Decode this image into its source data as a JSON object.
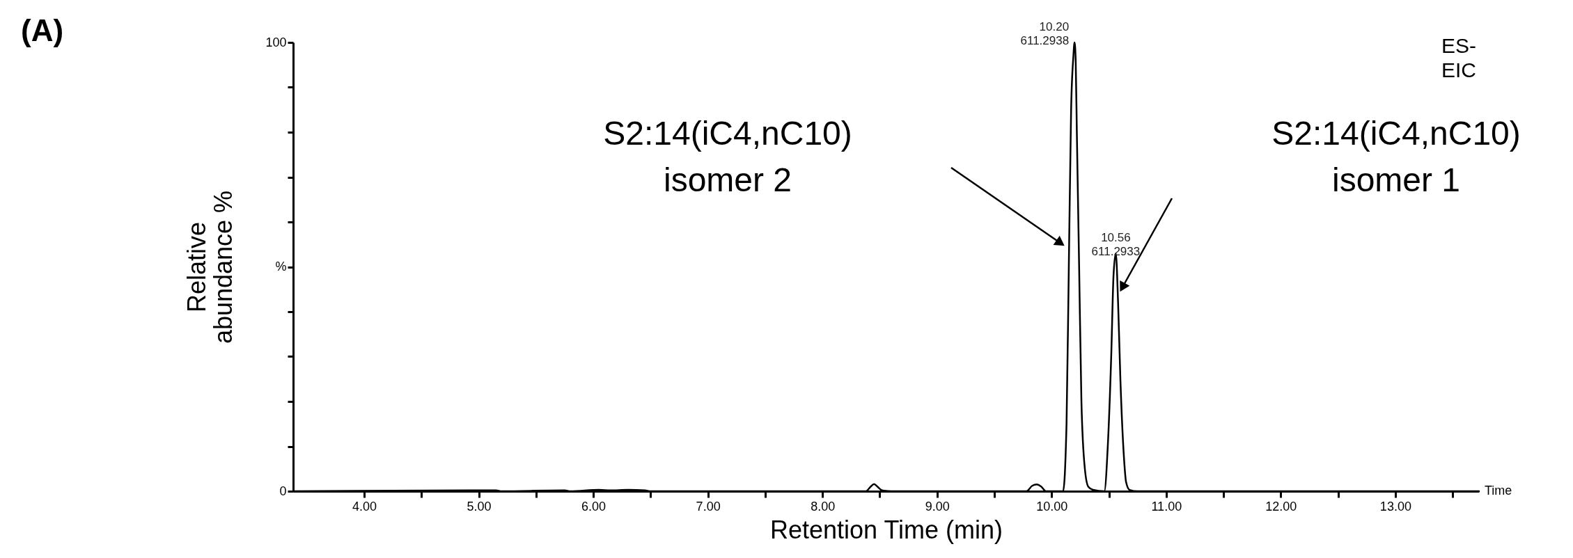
{
  "chart_data": {
    "type": "line",
    "xlabel": "Retention Time (min)",
    "ylabel": "Relative\nabundance %",
    "xlim": [
      3.38,
      13.73
    ],
    "ylim": [
      0,
      100
    ],
    "xticks": [
      {
        "value": 4,
        "label": "4.00"
      },
      {
        "value": 4.5,
        "label": null
      },
      {
        "value": 5,
        "label": "5.00"
      },
      {
        "value": 5.5,
        "label": null
      },
      {
        "value": 6,
        "label": "6.00"
      },
      {
        "value": 6.5,
        "label": null
      },
      {
        "value": 7,
        "label": "7.00"
      },
      {
        "value": 7.5,
        "label": null
      },
      {
        "value": 8,
        "label": "8.00"
      },
      {
        "value": 8.5,
        "label": null
      },
      {
        "value": 9,
        "label": "9.00"
      },
      {
        "value": 9.5,
        "label": null
      },
      {
        "value": 10,
        "label": "10.00"
      },
      {
        "value": 10.5,
        "label": null
      },
      {
        "value": 11,
        "label": "11.00"
      },
      {
        "value": 11.5,
        "label": null
      },
      {
        "value": 12,
        "label": "12.00"
      },
      {
        "value": 12.5,
        "label": null
      },
      {
        "value": 13,
        "label": "13.00"
      },
      {
        "value": 13.5,
        "label": null
      }
    ],
    "yticks": [
      0,
      {
        "value": 10,
        "label": null
      },
      {
        "value": 20,
        "label": null
      },
      {
        "value": 30,
        "label": null
      },
      {
        "value": 40,
        "label": null
      },
      {
        "value": 50,
        "label": "%"
      },
      {
        "value": 60,
        "label": null
      },
      {
        "value": 70,
        "label": null
      },
      {
        "value": 80,
        "label": null
      },
      {
        "value": 90,
        "label": null
      },
      100
    ],
    "grid": false,
    "marker": "none",
    "line_style": "solid",
    "x": [
      3.38,
      5.15,
      5.2,
      5.75,
      5.8,
      6.05,
      6.15,
      6.3,
      6.45,
      6.5,
      8.38,
      8.42,
      8.45,
      8.48,
      8.52,
      8.6,
      9.78,
      9.83,
      9.87,
      9.91,
      9.95,
      10.1,
      10.13,
      10.15,
      10.17,
      10.19,
      10.2,
      10.21,
      10.22,
      10.24,
      10.26,
      10.29,
      10.32,
      10.36,
      10.46,
      10.49,
      10.52,
      10.54,
      10.56,
      10.58,
      10.6,
      10.63,
      10.65,
      10.68,
      10.75,
      13.73
    ],
    "series": [
      {
        "color": "#000000",
        "values": [
          0,
          0.2,
          0,
          0.2,
          0,
          0.3,
          0.2,
          0.3,
          0.2,
          0,
          0,
          1.0,
          1.6,
          1.0,
          0.2,
          0,
          0,
          1.2,
          1.5,
          1.0,
          0,
          0,
          15,
          50,
          85,
          97,
          100,
          96,
          80,
          50,
          20,
          5,
          1,
          0.3,
          0,
          10,
          30,
          48,
          53,
          42,
          25,
          8,
          2,
          0.3,
          0,
          0
        ]
      }
    ],
    "annotations": [
      "(A)",
      "ES-\nEIC",
      {
        "text": "10.20\n611.2938",
        "x": 10.2,
        "y": 100
      },
      {
        "text": "10.56\n611.2933",
        "x": 10.56,
        "y": 53
      },
      "S2:14(iC4,nC10)\nisomer 2",
      "S2:14(iC4,nC10)\nisomer 1",
      "Time"
    ]
  }
}
